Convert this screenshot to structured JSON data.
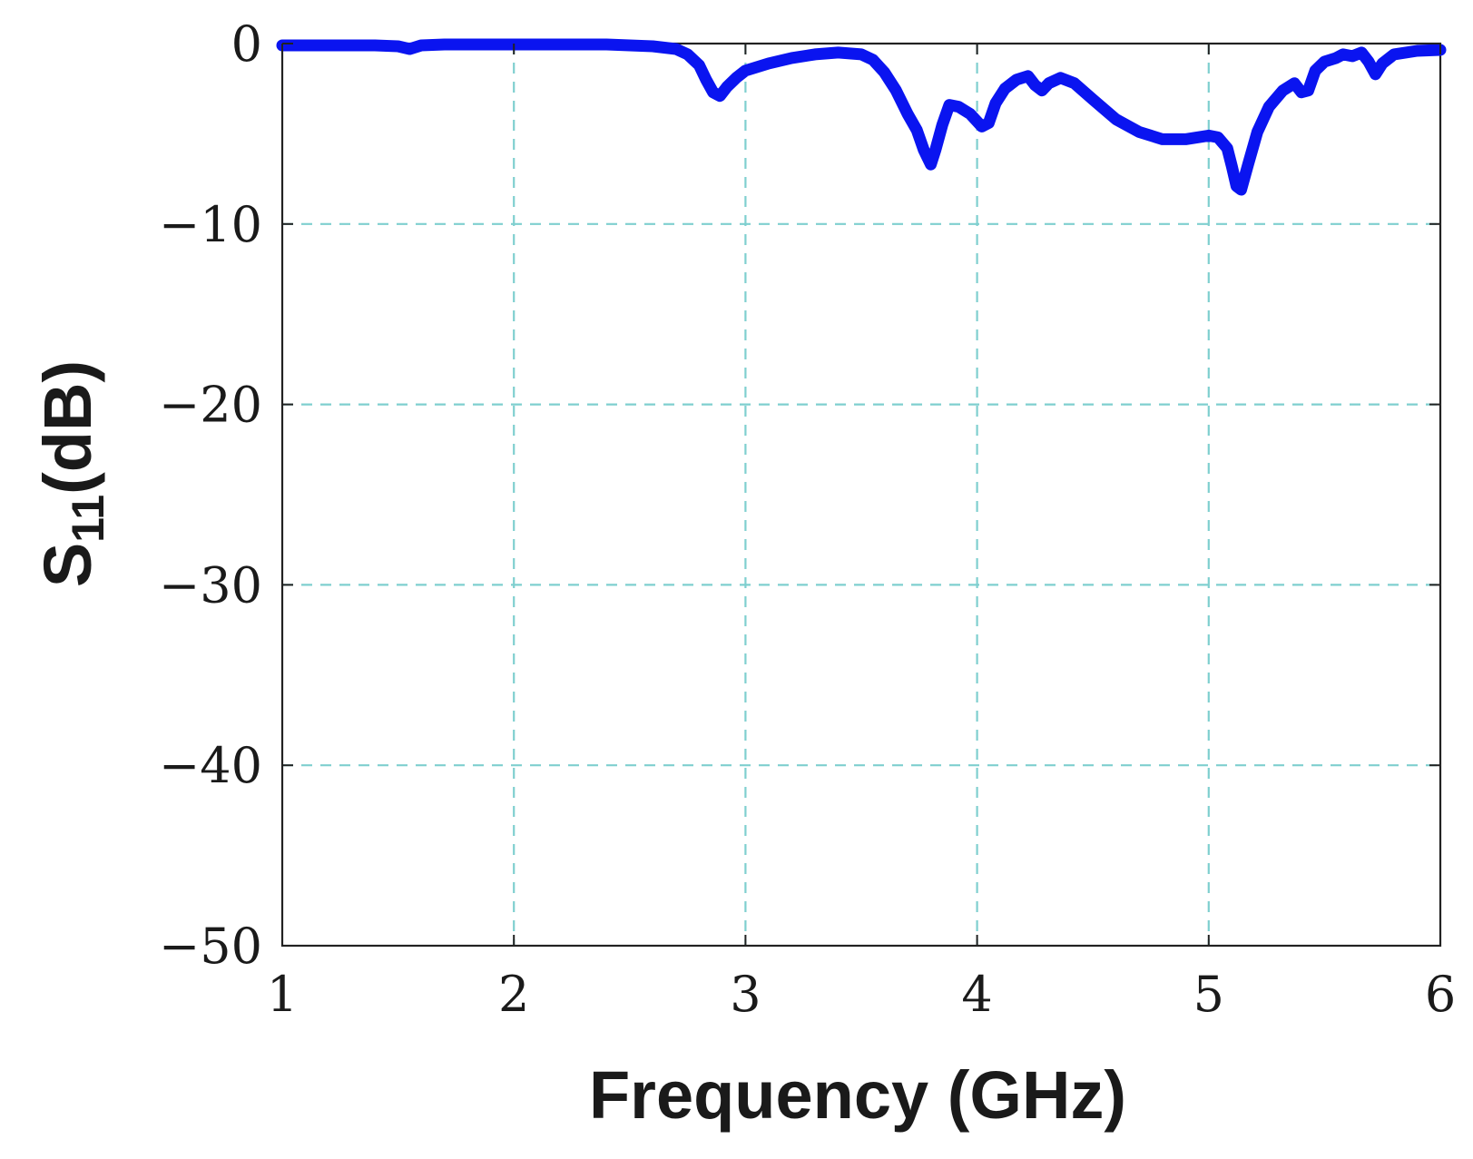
{
  "chart_data": {
    "type": "line",
    "xlabel": "Frequency (GHz)",
    "ylabel": {
      "main": "S",
      "subscript": "11",
      "suffix": "(dB)"
    },
    "xlim": [
      1,
      6
    ],
    "ylim": [
      -50,
      0
    ],
    "xticks": [
      "1",
      "2",
      "3",
      "4",
      "5",
      "6"
    ],
    "yticks": [
      "0",
      "−10",
      "−20",
      "−30",
      "−40",
      "−50"
    ],
    "grid": true,
    "grid_color": "#7fcfcf",
    "line_color": "#0a14f0",
    "series": [
      {
        "x": [
          1.0,
          1.2,
          1.4,
          1.5,
          1.55,
          1.6,
          1.7,
          1.8,
          2.0,
          2.2,
          2.4,
          2.6,
          2.7,
          2.75,
          2.8,
          2.83,
          2.86,
          2.89,
          2.92,
          2.96,
          3.0,
          3.1,
          3.2,
          3.3,
          3.4,
          3.5,
          3.55,
          3.6,
          3.65,
          3.7,
          3.74,
          3.77,
          3.8,
          3.82,
          3.85,
          3.88,
          3.92,
          3.97,
          4.02,
          4.05,
          4.08,
          4.12,
          4.17,
          4.22,
          4.25,
          4.28,
          4.31,
          4.36,
          4.42,
          4.5,
          4.6,
          4.7,
          4.8,
          4.9,
          5.0,
          5.04,
          5.08,
          5.1,
          5.12,
          5.14,
          5.17,
          5.21,
          5.26,
          5.32,
          5.37,
          5.4,
          5.43,
          5.46,
          5.5,
          5.55,
          5.58,
          5.62,
          5.66,
          5.69,
          5.72,
          5.75,
          5.8,
          5.9,
          6.0
        ],
        "y": [
          -0.1,
          -0.1,
          -0.1,
          -0.15,
          -0.3,
          -0.1,
          -0.05,
          -0.05,
          -0.05,
          -0.05,
          -0.05,
          -0.15,
          -0.3,
          -0.6,
          -1.2,
          -2.0,
          -2.7,
          -2.9,
          -2.4,
          -1.9,
          -1.5,
          -1.1,
          -0.8,
          -0.6,
          -0.5,
          -0.6,
          -0.9,
          -1.6,
          -2.6,
          -3.9,
          -4.8,
          -5.9,
          -6.7,
          -5.9,
          -4.5,
          -3.4,
          -3.5,
          -3.9,
          -4.6,
          -4.4,
          -3.3,
          -2.5,
          -2.0,
          -1.8,
          -2.3,
          -2.6,
          -2.2,
          -1.9,
          -2.2,
          -3.1,
          -4.2,
          -4.9,
          -5.3,
          -5.3,
          -5.1,
          -5.2,
          -5.8,
          -6.8,
          -7.9,
          -8.1,
          -6.7,
          -4.9,
          -3.5,
          -2.6,
          -2.2,
          -2.7,
          -2.6,
          -1.5,
          -1.0,
          -0.8,
          -0.6,
          -0.7,
          -0.5,
          -1.0,
          -1.7,
          -1.1,
          -0.6,
          -0.4,
          -0.35
        ]
      }
    ]
  }
}
